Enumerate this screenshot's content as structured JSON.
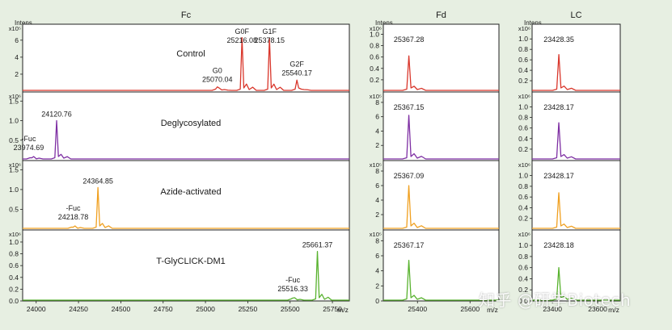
{
  "watermark": "知乎 @研学Biotech",
  "colors": {
    "Control": "#d9362b",
    "Deglycosylated": "#7e2fa3",
    "Azide-activated": "#f0a020",
    "T-GlyCLICK-DM1": "#58b22e",
    "background": "#e7efe2"
  },
  "chart_data": [
    {
      "type": "line",
      "title": "Fc",
      "ylabel": "Intens.",
      "xlabel": "m/z",
      "xlim": [
        23920,
        25850
      ],
      "xticks": [
        24000,
        24250,
        24500,
        24750,
        25000,
        25250,
        25500,
        25750
      ],
      "grid": false,
      "rows": [
        {
          "name": "Control",
          "exponent": "x10⁵",
          "ylim": [
            0,
            7.5
          ],
          "yticks": [
            2,
            4,
            6
          ],
          "peaks": [
            {
              "x": 25070.04,
              "y": 0.5,
              "label": "G0\n25070.04"
            },
            {
              "x": 25216.08,
              "y": 6.3,
              "label": "G0F\n25216.08"
            },
            {
              "x": 25378.15,
              "y": 6.2,
              "label": "G1F\n25378.15"
            },
            {
              "x": 25540.17,
              "y": 1.3,
              "label": "G2F\n25540.17"
            }
          ]
        },
        {
          "name": "Deglycosylated",
          "exponent": "x10⁶",
          "ylim": [
            0,
            1.65
          ],
          "yticks": [
            0.5,
            1.0,
            1.5
          ],
          "peaks": [
            {
              "x": 23974.69,
              "y": 0.05,
              "label": "-Fuc\n23974.69"
            },
            {
              "x": 24120.76,
              "y": 1.0,
              "label": "24120.76"
            }
          ]
        },
        {
          "name": "Azide-activated",
          "exponent": "x10⁶",
          "ylim": [
            0,
            1.65
          ],
          "yticks": [
            0.5,
            1.0,
            1.5
          ],
          "peaks": [
            {
              "x": 24218.78,
              "y": 0.05,
              "label": "-Fuc\n24218.78"
            },
            {
              "x": 24364.85,
              "y": 1.05,
              "label": "24364.85"
            }
          ]
        },
        {
          "name": "T-GlyCLICK-DM1",
          "exponent": "x10⁶",
          "ylim": [
            0,
            1.15
          ],
          "yticks": [
            0.0,
            0.2,
            0.4,
            0.6,
            0.8,
            1.0
          ],
          "peaks": [
            {
              "x": 25516.33,
              "y": 0.05,
              "label": "-Fuc\n25516.33"
            },
            {
              "x": 25661.37,
              "y": 0.84,
              "label": "25661.37"
            }
          ]
        }
      ]
    },
    {
      "type": "line",
      "title": "Fd",
      "ylabel": "Intens.",
      "xlabel": "m/z",
      "xlim": [
        25270,
        25710
      ],
      "xticks": [
        25400,
        25600
      ],
      "grid": false,
      "rows": [
        {
          "name": "Control",
          "exponent": "x10⁶",
          "ylim": [
            0,
            1.12
          ],
          "yticks": [
            0.2,
            0.4,
            0.6,
            0.8,
            1.0
          ],
          "peaks": [
            {
              "x": 25367.28,
              "y": 0.62,
              "label": "25367.28"
            }
          ]
        },
        {
          "name": "Deglycosylated",
          "exponent": "x10⁵",
          "ylim": [
            0,
            9
          ],
          "yticks": [
            2,
            4,
            6,
            8
          ],
          "peaks": [
            {
              "x": 25367.15,
              "y": 6.2,
              "label": "25367.15"
            }
          ]
        },
        {
          "name": "Azide-activated",
          "exponent": "x10⁵",
          "ylim": [
            0,
            9
          ],
          "yticks": [
            2,
            4,
            6,
            8
          ],
          "peaks": [
            {
              "x": 25367.09,
              "y": 6.0,
              "label": "25367.09"
            }
          ]
        },
        {
          "name": "T-GlyCLICK-DM1",
          "exponent": "x10⁵",
          "ylim": [
            0,
            9
          ],
          "yticks": [
            0,
            2,
            4,
            6,
            8
          ],
          "peaks": [
            {
              "x": 25367.17,
              "y": 5.4,
              "label": "25367.17"
            }
          ]
        }
      ]
    },
    {
      "type": "line",
      "title": "LC",
      "ylabel": "Intens.",
      "xlabel": "m/z",
      "xlim": [
        23310,
        23700
      ],
      "xticks": [
        23400,
        23600
      ],
      "grid": false,
      "rows": [
        {
          "name": "Control",
          "exponent": "x10⁶",
          "ylim": [
            0,
            1.22
          ],
          "yticks": [
            0.2,
            0.4,
            0.6,
            0.8,
            1.0,
            1.2
          ],
          "peaks": [
            {
              "x": 23428.35,
              "y": 0.7,
              "label": "23428.35"
            }
          ]
        },
        {
          "name": "Deglycosylated",
          "exponent": "x10⁶",
          "ylim": [
            0,
            1.22
          ],
          "yticks": [
            0.2,
            0.4,
            0.6,
            0.8,
            1.0,
            1.2
          ],
          "peaks": [
            {
              "x": 23428.17,
              "y": 0.7,
              "label": "23428.17"
            }
          ]
        },
        {
          "name": "Azide-activated",
          "exponent": "x10⁶",
          "ylim": [
            0,
            1.22
          ],
          "yticks": [
            0.2,
            0.4,
            0.6,
            0.8,
            1.0,
            1.2
          ],
          "peaks": [
            {
              "x": 23428.17,
              "y": 0.68,
              "label": "23428.17"
            }
          ]
        },
        {
          "name": "T-GlyCLICK-DM1",
          "exponent": "x10⁶",
          "ylim": [
            0,
            1.22
          ],
          "yticks": [
            0.0,
            0.2,
            0.4,
            0.6,
            0.8,
            1.0,
            1.2
          ],
          "peaks": [
            {
              "x": 23428.18,
              "y": 0.6,
              "label": "23428.18"
            }
          ]
        }
      ]
    }
  ]
}
